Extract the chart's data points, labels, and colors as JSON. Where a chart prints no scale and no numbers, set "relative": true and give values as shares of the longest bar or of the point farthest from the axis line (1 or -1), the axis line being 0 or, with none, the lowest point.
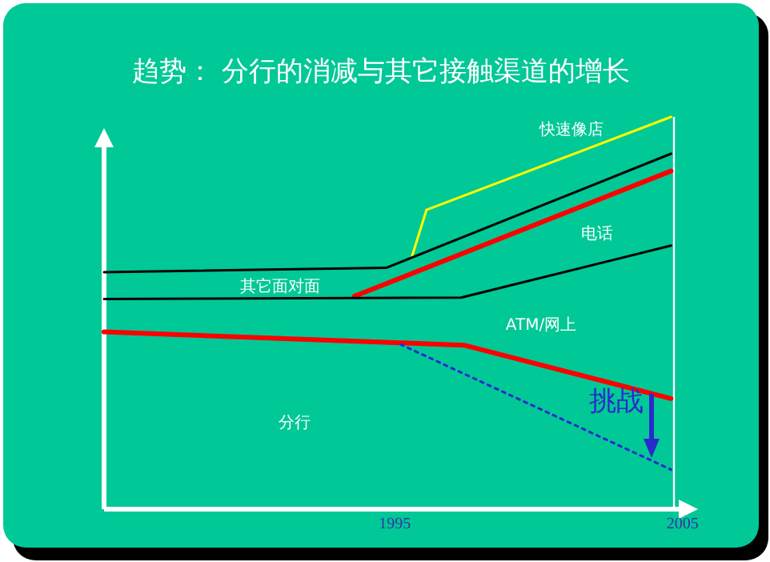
{
  "chart_data": {
    "type": "line",
    "title": "趋势：  分行的消减与其它接触渠道的增长",
    "relative": true,
    "tick_labels": "x",
    "xlim": [
      1984.9,
      2005.2
    ],
    "xticks": [
      1995,
      2005
    ],
    "series": [
      {
        "color": "#ffff00",
        "x": [
          1995.6,
          1996.1,
          2004.6
        ],
        "values": [
          0.645,
          0.763,
          1.0
        ]
      },
      {
        "color": "#000000",
        "x": [
          1984.9,
          1994.7,
          2004.6
        ],
        "values": [
          0.604,
          0.615,
          0.906
        ]
      },
      {
        "color": "#ff0000",
        "x": [
          1993.6,
          2004.6
        ],
        "values": [
          0.543,
          0.862
        ]
      },
      {
        "color": "#000000",
        "x": [
          1984.9,
          1997.3,
          2004.6
        ],
        "values": [
          0.536,
          0.539,
          0.672
        ]
      },
      {
        "color": "#ff0000",
        "x": [
          1984.9,
          1995.2,
          1997.4,
          2004.6
        ],
        "values": [
          0.452,
          0.424,
          0.418,
          0.282
        ]
      },
      {
        "color": "#2a2acc",
        "line_style": "dotted",
        "x": [
          1995.2,
          2004.6
        ],
        "values": [
          0.42,
          0.101
        ]
      }
    ],
    "ref_lines": [
      {
        "axis": "x",
        "value": 2004.7,
        "color": "#ffffff"
      }
    ],
    "annotations": [
      "快速像店",
      "电话",
      "其它面对面",
      "ATM/网上",
      "分行",
      "挑战"
    ]
  }
}
